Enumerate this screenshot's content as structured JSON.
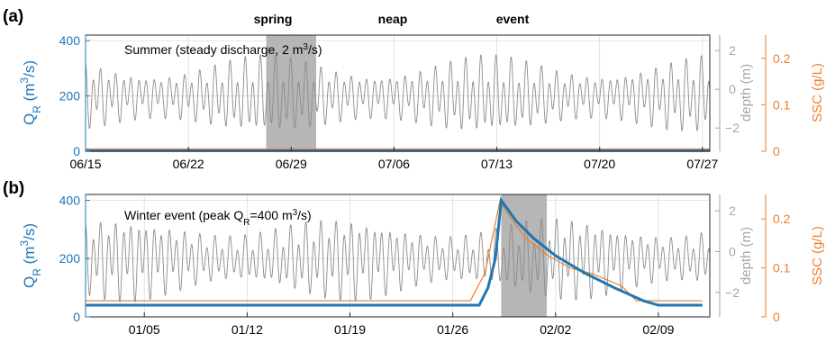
{
  "chart_data": [
    {
      "type": "line",
      "panel_label": "(a)",
      "annotation": "Summer (steady discharge, 2 m³/s)",
      "markers": [
        "spring",
        "neap",
        "event"
      ],
      "x_tick_labels": [
        "06/15",
        "06/22",
        "06/29",
        "07/06",
        "07/13",
        "07/20",
        "07/27"
      ],
      "x_range_days": [
        0,
        42.5
      ],
      "shaded_span_days": [
        12.3,
        15.7
      ],
      "left_axis": {
        "label": "Q_R (m³/s)",
        "ylim": [
          0,
          420
        ],
        "ticks": [
          0,
          200,
          400
        ],
        "color": "#1f77b4"
      },
      "right_axis_1": {
        "label": "depth (m)",
        "ylim": [
          -3.2,
          2.8
        ],
        "ticks": [
          -2,
          0,
          2
        ],
        "color": "#a6a6a6"
      },
      "right_axis_2": {
        "label": "SSC (g/L)",
        "ylim": [
          0,
          0.25
        ],
        "ticks": [
          0,
          0.1,
          0.2
        ],
        "color": "#ef7d2c"
      },
      "grid": true,
      "series": [
        {
          "axis": "left",
          "color": "#1f77b4",
          "points": [
            [
              0,
              2
            ],
            [
              42.5,
              2
            ]
          ]
        },
        {
          "axis": "ssc",
          "color": "#ef7d2c",
          "points": [
            [
              0,
              0.005
            ],
            [
              42.5,
              0.005
            ]
          ]
        },
        {
          "axis": "depth",
          "color": "#8c8c8c",
          "tidal": {
            "mean": -0.35,
            "semidiurnal_amp": 1.1,
            "diurnal_amp": 0.55,
            "spring_neap_mod": 0.3,
            "spring_day": 12.3,
            "neap_day": 19.8,
            "period_days": 15
          }
        }
      ]
    },
    {
      "type": "line",
      "panel_label": "(b)",
      "annotation": "Winter event (peak Q_R=400 m³/s)",
      "x_tick_labels": [
        "01/05",
        "01/12",
        "01/19",
        "01/26",
        "02/02",
        "02/09"
      ],
      "x_tick_days": [
        4,
        11,
        18,
        25,
        32,
        39
      ],
      "x_range_days": [
        0,
        42.5
      ],
      "shaded_span_days": [
        28.3,
        31.4
      ],
      "left_axis": {
        "label": "Q_R (m³/s)",
        "ylim": [
          0,
          420
        ],
        "ticks": [
          0,
          200,
          400
        ],
        "color": "#1f77b4"
      },
      "right_axis_1": {
        "label": "depth (m)",
        "ylim": [
          -3.2,
          2.8
        ],
        "ticks": [
          -2,
          0,
          2
        ],
        "color": "#a6a6a6"
      },
      "right_axis_2": {
        "label": "SSC (g/L)",
        "ylim": [
          0,
          0.25
        ],
        "ticks": [
          0,
          0.1,
          0.2
        ],
        "color": "#ef7d2c"
      },
      "grid": true,
      "series": [
        {
          "axis": "left",
          "color": "#1f77b4",
          "points": [
            [
              0,
              40
            ],
            [
              26.8,
              40
            ],
            [
              27.4,
              100
            ],
            [
              27.9,
              200
            ],
            [
              28.3,
              400
            ],
            [
              29.3,
              330
            ],
            [
              30.5,
              270
            ],
            [
              32,
              210
            ],
            [
              34,
              150
            ],
            [
              36,
              100
            ],
            [
              38,
              55
            ],
            [
              39,
              40
            ],
            [
              42,
              40
            ]
          ]
        },
        {
          "axis": "ssc",
          "color": "#ef7d2c",
          "points": [
            [
              0,
              0.033
            ],
            [
              26.2,
              0.033
            ],
            [
              27.2,
              0.09
            ],
            [
              28.2,
              0.235
            ],
            [
              29,
              0.2
            ],
            [
              30,
              0.16
            ],
            [
              31.5,
              0.125
            ],
            [
              33,
              0.1
            ],
            [
              34.5,
              0.088
            ],
            [
              36.5,
              0.063
            ],
            [
              37.5,
              0.033
            ],
            [
              42,
              0.033
            ]
          ]
        },
        {
          "axis": "depth",
          "color": "#8c8c8c",
          "tidal": {
            "mean": -0.35,
            "semidiurnal_amp": 1.1,
            "diurnal_amp": 0.55,
            "spring_neap_mod": 0.3,
            "spring_day": 2.5,
            "neap_day": 10,
            "period_days": 15
          }
        }
      ]
    }
  ]
}
